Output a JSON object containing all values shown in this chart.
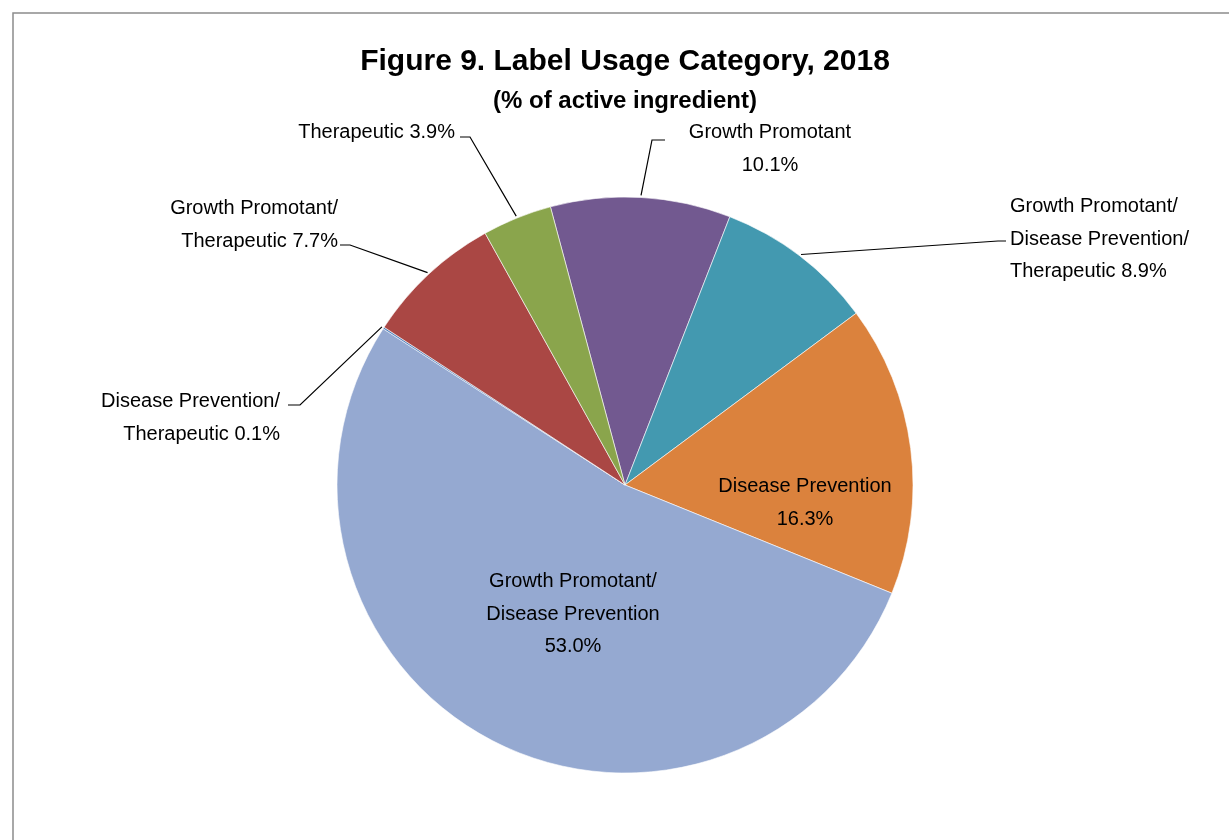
{
  "chart_data": {
    "type": "pie",
    "title": "Figure 9. Label Usage Category, 2018",
    "subtitle": "(% of active ingredient)",
    "categories": [
      "Growth Promotant",
      "Growth Promotant/Disease Prevention/Therapeutic",
      "Disease Prevention",
      "Growth Promotant/Disease Prevention",
      "Disease Prevention/Therapeutic",
      "Growth Promotant/Therapeutic",
      "Therapeutic"
    ],
    "values": [
      10.1,
      8.9,
      16.3,
      53.0,
      0.1,
      7.7,
      3.9
    ],
    "value_labels": [
      "10.1%",
      "8.9%",
      "16.3%",
      "53.0%",
      "0.1%",
      "7.7%",
      "3.9%"
    ],
    "colors": [
      "#725990",
      "#4399b0",
      "#db823d",
      "#95a9d1",
      "#4f81bd",
      "#aa4744",
      "#8aa54c"
    ]
  }
}
